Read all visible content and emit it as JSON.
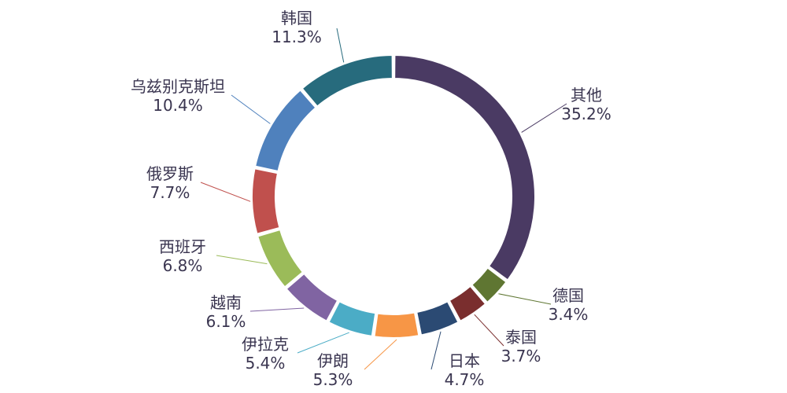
{
  "chart_data": {
    "type": "pie",
    "variant": "donut",
    "slices": [
      {
        "label": "其他",
        "value": 35.2,
        "value_text": "35.2%",
        "color": "#4a3a63"
      },
      {
        "label": "德国",
        "value": 3.4,
        "value_text": "3.4%",
        "color": "#5f7632"
      },
      {
        "label": "泰国",
        "value": 3.7,
        "value_text": "3.7%",
        "color": "#7a2e2e"
      },
      {
        "label": "日本",
        "value": 4.7,
        "value_text": "4.7%",
        "color": "#2b4a73"
      },
      {
        "label": "伊朗",
        "value": 5.3,
        "value_text": "5.3%",
        "color": "#f79646"
      },
      {
        "label": "伊拉克",
        "value": 5.4,
        "value_text": "5.4%",
        "color": "#4bacc6"
      },
      {
        "label": "越南",
        "value": 6.1,
        "value_text": "6.1%",
        "color": "#8064a2"
      },
      {
        "label": "西班牙",
        "value": 6.8,
        "value_text": "6.8%",
        "color": "#9bbb59"
      },
      {
        "label": "俄罗斯",
        "value": 7.7,
        "value_text": "7.7%",
        "color": "#c0504d"
      },
      {
        "label": "乌兹别克斯坦",
        "value": 10.4,
        "value_text": "10.4%",
        "color": "#4f81bd"
      },
      {
        "label": "韩国",
        "value": 11.3,
        "value_text": "11.3%",
        "color": "#276b7d"
      }
    ],
    "start_angle": "12 o'clock",
    "direction": "clockwise",
    "legend": "none"
  }
}
